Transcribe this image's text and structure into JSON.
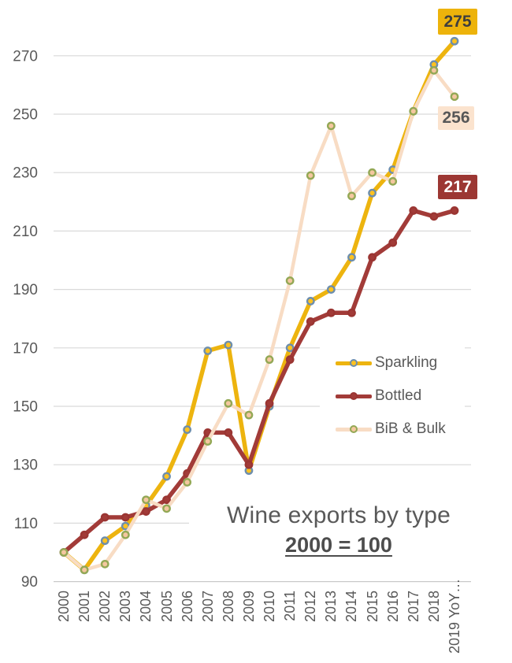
{
  "chart_data": {
    "type": "line",
    "title": "Wine exports by type",
    "subtitle": "2000 = 100",
    "xlabel": "",
    "ylabel": "",
    "ylim": [
      90,
      280
    ],
    "y_ticks": [
      270,
      250,
      230,
      210,
      190,
      170,
      150,
      130,
      110,
      90
    ],
    "grid": true,
    "legend_position": "center-right",
    "categories": [
      "2000",
      "2001",
      "2002",
      "2003",
      "2004",
      "2005",
      "2006",
      "2007",
      "2008",
      "2009",
      "2010",
      "2011",
      "2012",
      "2013",
      "2014",
      "2015",
      "2016",
      "2017",
      "2018",
      "2019 YoY…"
    ],
    "series": [
      {
        "name": "Sparkling",
        "color": "#EDB40F",
        "marker_fill": "#FFC220",
        "marker_ring": "#6D8EAD",
        "values": [
          100,
          94,
          104,
          109,
          116,
          126,
          142,
          169,
          171,
          128,
          150,
          170,
          186,
          190,
          201,
          223,
          231,
          251,
          267,
          275
        ]
      },
      {
        "name": "Bottled",
        "color": "#A23B38",
        "marker_fill": "#A23B38",
        "marker_ring": "#9A3532",
        "values": [
          100,
          106,
          112,
          112,
          114,
          118,
          127,
          141,
          141,
          130,
          151,
          166,
          179,
          182,
          182,
          201,
          206,
          217,
          215,
          217
        ]
      },
      {
        "name": "BiB & Bulk",
        "color": "#F8DCC4",
        "marker_fill": "#F4C79F",
        "marker_ring": "#93A855",
        "values": [
          100,
          94,
          96,
          106,
          118,
          115,
          124,
          138,
          151,
          147,
          166,
          193,
          229,
          246,
          222,
          230,
          227,
          251,
          265,
          256
        ]
      }
    ],
    "end_labels": {
      "sparkling": {
        "text": "275",
        "bg": "#EDB30B",
        "fg": "#3E3E3E"
      },
      "bib": {
        "text": "256",
        "bg": "#FBE3CE",
        "fg": "#575757"
      },
      "bottled": {
        "text": "217",
        "bg": "#9C3733",
        "fg": "#FFFFFF"
      }
    },
    "axis_text_color": "#595959",
    "gridline_color": "#D9D9D9"
  }
}
